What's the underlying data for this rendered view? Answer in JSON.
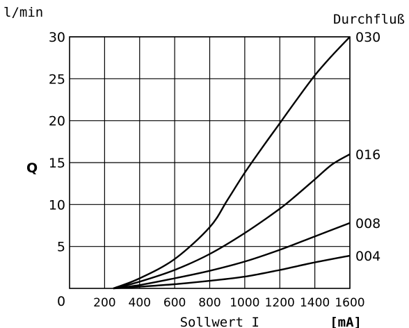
{
  "chart_data": {
    "type": "line",
    "y_unit_label": "l/min",
    "ylabel": "Q",
    "xlabel": "Sollwert I",
    "x_unit_label": "[mA]",
    "right_label": "Durchfluß",
    "xlim": [
      0,
      1600
    ],
    "ylim": [
      0,
      30
    ],
    "x_ticks": [
      200,
      400,
      600,
      800,
      1000,
      1200,
      1400,
      1600
    ],
    "y_ticks": [
      5,
      10,
      15,
      20,
      25,
      30
    ],
    "origin_label": "0",
    "grid": true,
    "line_color": "#000000",
    "series": [
      {
        "name": "030",
        "points": [
          [
            250,
            0
          ],
          [
            400,
            1.2
          ],
          [
            600,
            3.5
          ],
          [
            800,
            7.3
          ],
          [
            900,
            10.5
          ],
          [
            1000,
            13.8
          ],
          [
            1100,
            16.8
          ],
          [
            1200,
            19.7
          ],
          [
            1300,
            22.6
          ],
          [
            1400,
            25.4
          ],
          [
            1500,
            27.8
          ],
          [
            1600,
            30
          ]
        ]
      },
      {
        "name": "016",
        "points": [
          [
            250,
            0
          ],
          [
            400,
            0.8
          ],
          [
            600,
            2.2
          ],
          [
            800,
            4.1
          ],
          [
            1000,
            6.6
          ],
          [
            1200,
            9.5
          ],
          [
            1300,
            11.2
          ],
          [
            1400,
            13.0
          ],
          [
            1500,
            14.8
          ],
          [
            1600,
            16
          ]
        ]
      },
      {
        "name": "008",
        "points": [
          [
            250,
            0
          ],
          [
            400,
            0.4
          ],
          [
            600,
            1.2
          ],
          [
            800,
            2.1
          ],
          [
            1000,
            3.2
          ],
          [
            1200,
            4.6
          ],
          [
            1400,
            6.2
          ],
          [
            1600,
            7.8
          ]
        ]
      },
      {
        "name": "004",
        "points": [
          [
            250,
            0
          ],
          [
            400,
            0.2
          ],
          [
            600,
            0.5
          ],
          [
            800,
            0.9
          ],
          [
            1000,
            1.4
          ],
          [
            1200,
            2.2
          ],
          [
            1400,
            3.1
          ],
          [
            1600,
            3.9
          ]
        ]
      }
    ]
  }
}
